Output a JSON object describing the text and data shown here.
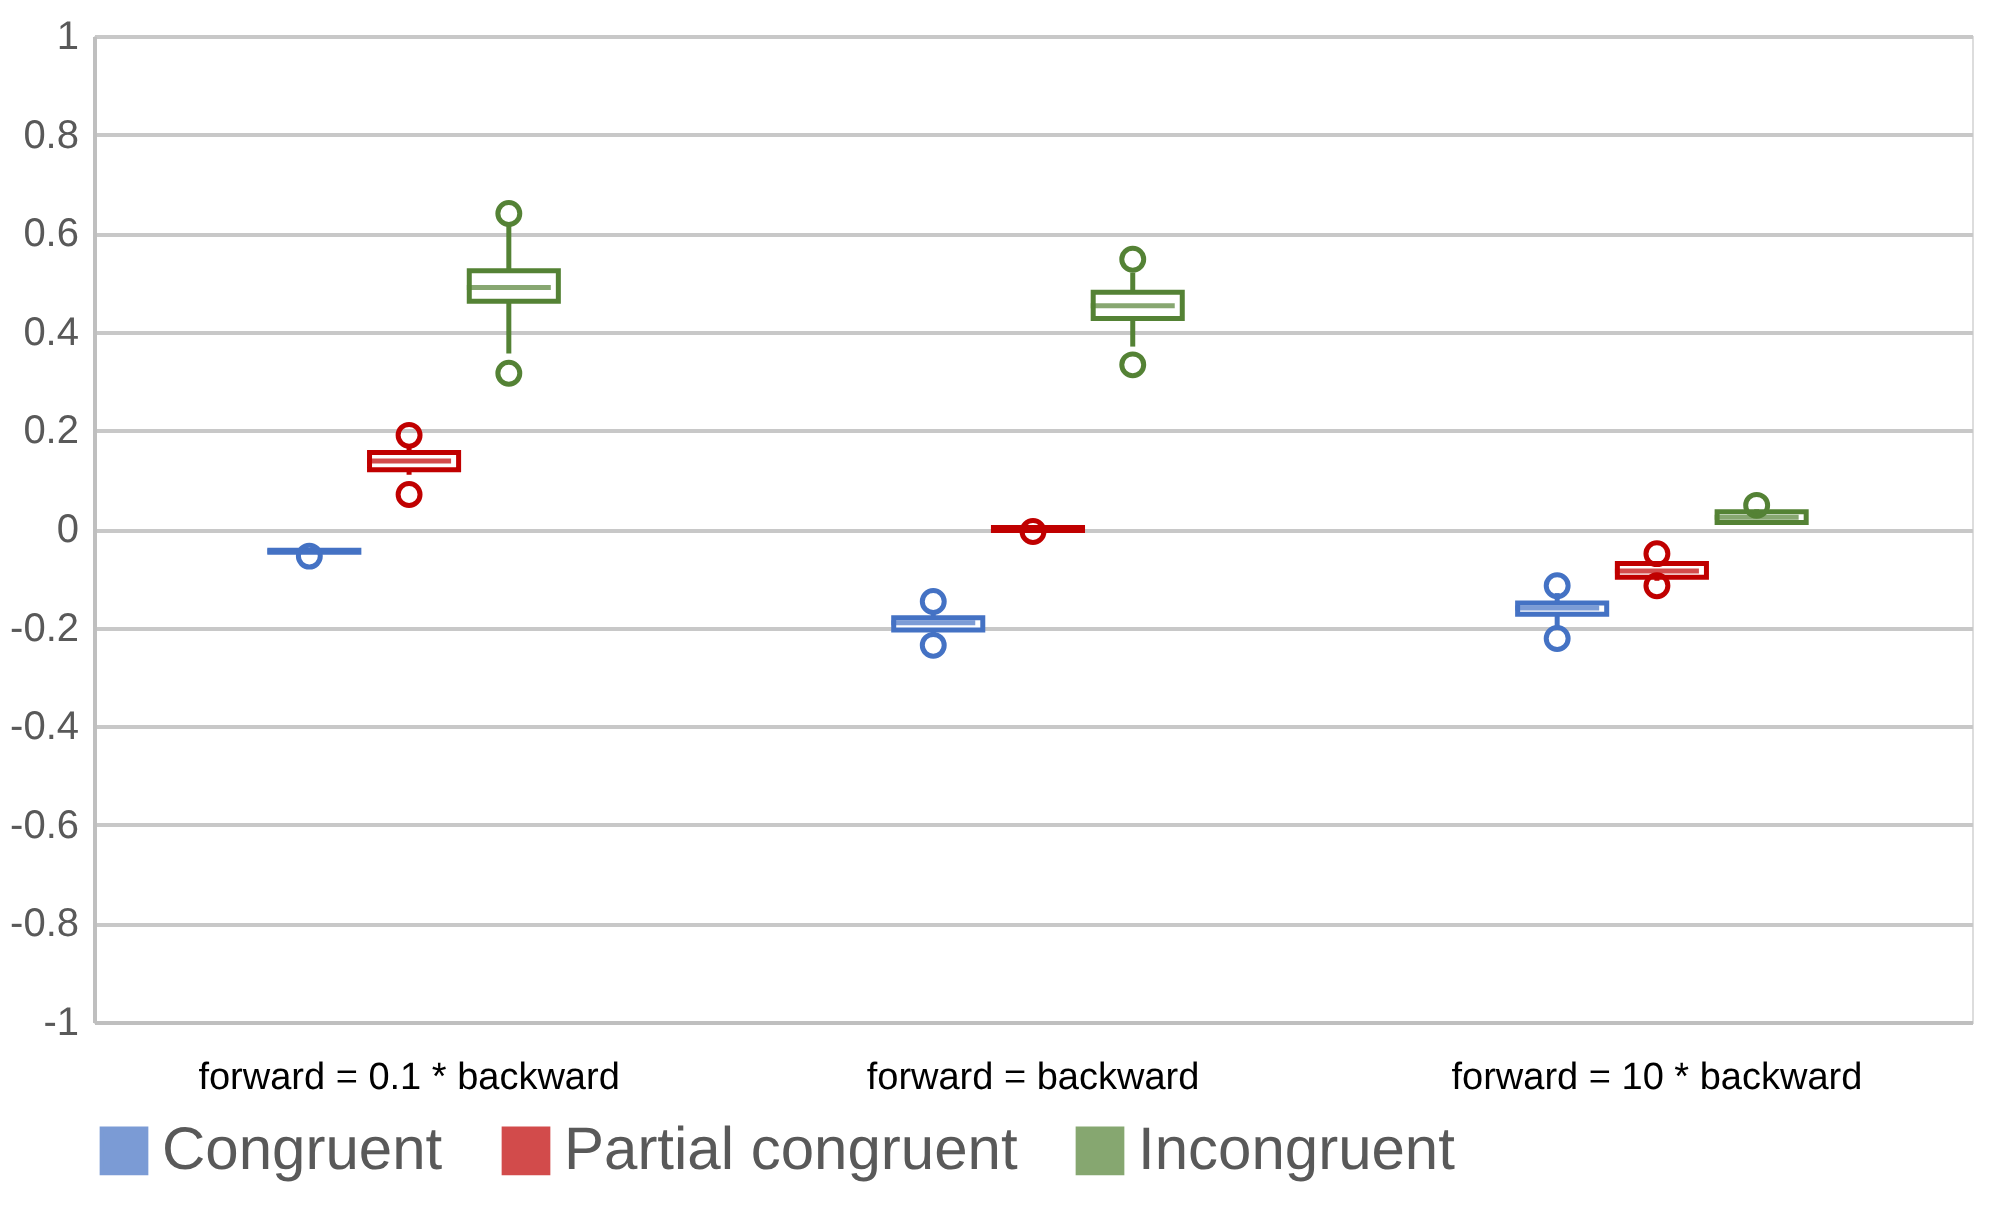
{
  "chart_data": {
    "type": "box",
    "categories": [
      "forward = 0.1 * backward",
      "forward = backward",
      "forward = 10 * backward"
    ],
    "ylim": [
      -1,
      1
    ],
    "yticks": [
      -1,
      -0.8,
      -0.6,
      -0.4,
      -0.2,
      0,
      0.2,
      0.4,
      0.6,
      0.8,
      1
    ],
    "grid": "y",
    "legend": "bottom",
    "series": [
      {
        "name": "Congruent",
        "color": "#4472c4",
        "boxes": [
          {
            "low": -0.05,
            "q1": -0.047,
            "median": -0.045,
            "q3": -0.043,
            "high": -0.04,
            "outliers": [
              -0.055
            ]
          },
          {
            "low": -0.215,
            "q1": -0.205,
            "median": -0.19,
            "q3": -0.18,
            "high": -0.17,
            "outliers": [
              -0.147,
              -0.236
            ]
          },
          {
            "low": -0.2,
            "q1": -0.173,
            "median": -0.16,
            "q3": -0.15,
            "high": -0.13,
            "outliers": [
              -0.115,
              -0.222
            ]
          }
        ]
      },
      {
        "name": "Partial congruent",
        "color": "#c00000",
        "boxes": [
          {
            "low": 0.11,
            "q1": 0.12,
            "median": 0.138,
            "q3": 0.155,
            "high": 0.17,
            "outliers": [
              0.19,
              0.07
            ]
          },
          {
            "low": -0.004,
            "q1": -0.003,
            "median": 0,
            "q3": 0.003,
            "high": 0.004,
            "outliers": [
              -0.005
            ]
          },
          {
            "low": -0.105,
            "q1": -0.098,
            "median": -0.085,
            "q3": -0.07,
            "high": -0.065,
            "outliers": [
              -0.05,
              -0.115
            ]
          }
        ]
      },
      {
        "name": "Incongruent",
        "color": "#548235",
        "boxes": [
          {
            "low": 0.356,
            "q1": 0.462,
            "median": 0.49,
            "q3": 0.524,
            "high": 0.62,
            "outliers": [
              0.64,
              0.316
            ]
          },
          {
            "low": 0.37,
            "q1": 0.427,
            "median": 0.453,
            "q3": 0.48,
            "high": 0.52,
            "outliers": [
              0.547,
              0.333
            ]
          },
          {
            "low": 0.013,
            "q1": 0.013,
            "median": 0.024,
            "q3": 0.035,
            "high": 0.04,
            "outliers": [
              0.048
            ]
          }
        ]
      }
    ]
  }
}
